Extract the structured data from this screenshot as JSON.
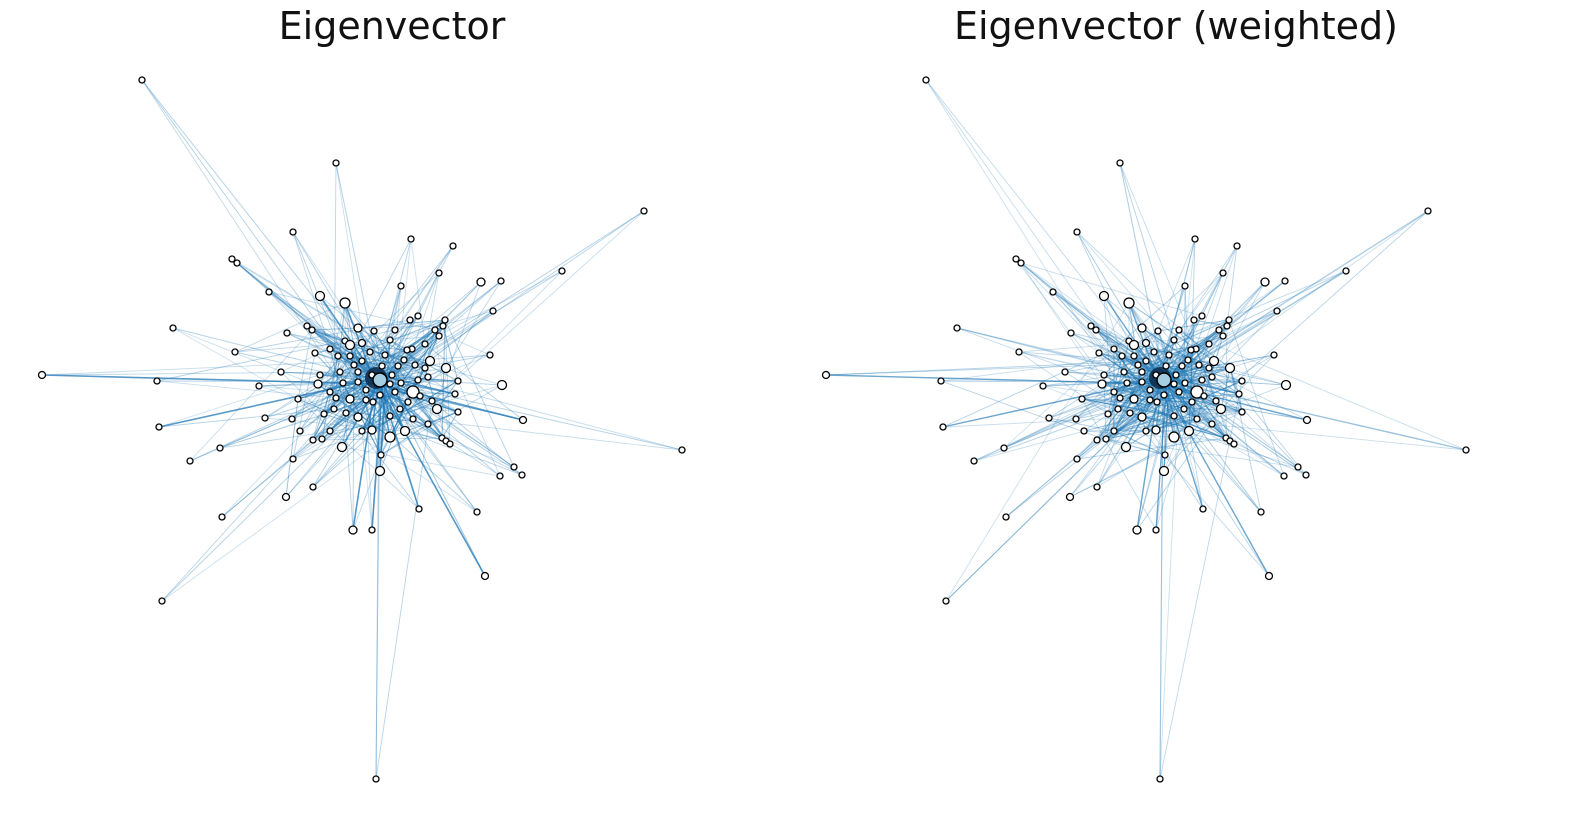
{
  "figure": {
    "panels": [
      {
        "title": "Eigenvector"
      },
      {
        "title": "Eigenvector (weighted)"
      }
    ],
    "edge_color": "#1f77b4",
    "node_fill": "#ffffff",
    "hub_fill": "#a6cee3",
    "node_stroke": "#000000"
  }
}
